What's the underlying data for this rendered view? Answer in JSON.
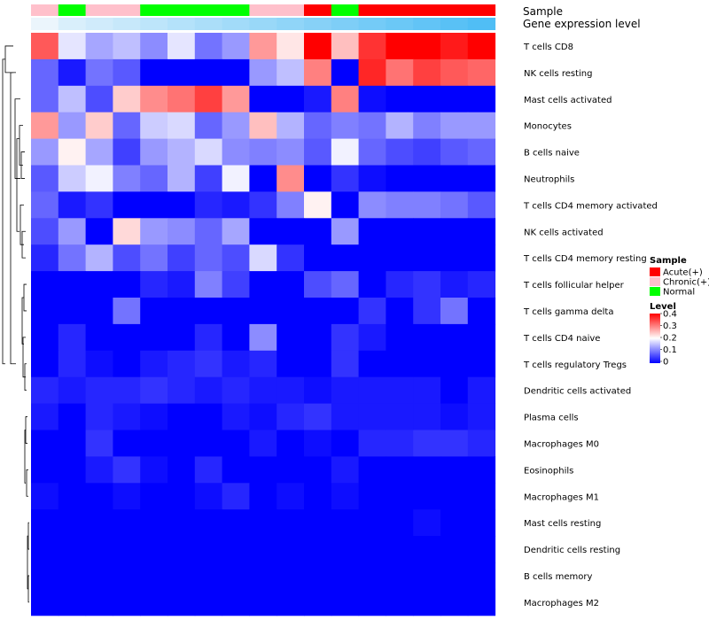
{
  "chart_data": {
    "type": "heatmap",
    "annotation_labels": {
      "sample": "Sample",
      "gene_expression": "Gene expression level"
    },
    "sample_groups": [
      "Chronic(+)",
      "Normal",
      "Chronic(+)",
      "Chronic(+)",
      "Normal",
      "Normal",
      "Normal",
      "Normal",
      "Chronic(+)",
      "Chronic(+)",
      "Acute(+)",
      "Normal",
      "Acute(+)",
      "Acute(+)",
      "Acute(+)",
      "Acute(+)",
      "Acute(+)"
    ],
    "gene_expression_level": [
      0.05,
      0.07,
      0.08,
      0.09,
      0.1,
      0.11,
      0.12,
      0.13,
      0.14,
      0.15,
      0.16,
      0.17,
      0.18,
      0.19,
      0.2,
      0.21,
      0.22
    ],
    "rows": [
      "T cells CD8",
      "NK cells resting",
      "Mast cells activated",
      "Monocytes",
      "B cells naive",
      "Neutrophils",
      "T cells CD4 memory activated",
      "NK cells activated",
      "T cells CD4 memory resting",
      "T cells follicular helper",
      "T cells gamma delta",
      "T cells CD4 naive",
      "T cells regulatory  Tregs",
      "Dendritic cells activated",
      "Plasma cells",
      "Macrophages M0",
      "Eosinophils",
      "Macrophages M1",
      "Mast cells resting",
      "Dendritic cells resting",
      "B cells memory",
      "Macrophages M2"
    ],
    "values": [
      [
        0.33,
        0.18,
        0.13,
        0.15,
        0.11,
        0.18,
        0.09,
        0.12,
        0.28,
        0.22,
        0.4,
        0.25,
        0.36,
        0.4,
        0.4,
        0.38,
        0.4
      ],
      [
        0.08,
        0.02,
        0.09,
        0.07,
        0.0,
        0.0,
        0.0,
        0.0,
        0.12,
        0.15,
        0.3,
        0.0,
        0.37,
        0.31,
        0.35,
        0.33,
        0.32
      ],
      [
        0.08,
        0.15,
        0.06,
        0.24,
        0.29,
        0.31,
        0.35,
        0.28,
        0.0,
        0.0,
        0.02,
        0.3,
        0.01,
        0.0,
        0.0,
        0.0,
        0.0
      ],
      [
        0.28,
        0.12,
        0.24,
        0.08,
        0.16,
        0.17,
        0.08,
        0.12,
        0.25,
        0.14,
        0.08,
        0.1,
        0.09,
        0.14,
        0.1,
        0.12,
        0.12
      ],
      [
        0.12,
        0.21,
        0.13,
        0.05,
        0.12,
        0.14,
        0.17,
        0.11,
        0.1,
        0.11,
        0.07,
        0.19,
        0.08,
        0.06,
        0.05,
        0.07,
        0.08
      ],
      [
        0.07,
        0.16,
        0.19,
        0.1,
        0.08,
        0.14,
        0.05,
        0.19,
        0.0,
        0.29,
        0.0,
        0.04,
        0.01,
        0.0,
        0.0,
        0.0,
        0.0
      ],
      [
        0.08,
        0.02,
        0.04,
        0.0,
        0.0,
        0.0,
        0.03,
        0.02,
        0.04,
        0.1,
        0.21,
        0.0,
        0.11,
        0.1,
        0.1,
        0.09,
        0.07
      ],
      [
        0.06,
        0.12,
        0.0,
        0.23,
        0.12,
        0.11,
        0.08,
        0.13,
        0.0,
        0.0,
        0.0,
        0.12,
        0.0,
        0.0,
        0.0,
        0.0,
        0.0
      ],
      [
        0.03,
        0.09,
        0.14,
        0.06,
        0.09,
        0.05,
        0.08,
        0.06,
        0.17,
        0.04,
        0.0,
        0.0,
        0.0,
        0.0,
        0.0,
        0.0,
        0.0
      ],
      [
        0.0,
        0.0,
        0.0,
        0.0,
        0.03,
        0.02,
        0.1,
        0.05,
        0.0,
        0.0,
        0.06,
        0.08,
        0.0,
        0.03,
        0.04,
        0.02,
        0.03
      ],
      [
        0.0,
        0.0,
        0.0,
        0.09,
        0.0,
        0.0,
        0.0,
        0.0,
        0.0,
        0.0,
        0.0,
        0.0,
        0.04,
        0.0,
        0.04,
        0.09,
        0.0
      ],
      [
        0.0,
        0.03,
        0.0,
        0.0,
        0.0,
        0.0,
        0.03,
        0.0,
        0.11,
        0.0,
        0.0,
        0.04,
        0.02,
        0.0,
        0.0,
        0.0,
        0.0
      ],
      [
        0.0,
        0.03,
        0.01,
        0.0,
        0.02,
        0.03,
        0.04,
        0.02,
        0.03,
        0.0,
        0.0,
        0.04,
        0.0,
        0.0,
        0.0,
        0.0,
        0.0
      ],
      [
        0.03,
        0.02,
        0.03,
        0.03,
        0.04,
        0.03,
        0.02,
        0.03,
        0.02,
        0.02,
        0.01,
        0.02,
        0.02,
        0.02,
        0.02,
        0.0,
        0.02
      ],
      [
        0.02,
        0.0,
        0.03,
        0.02,
        0.01,
        0.0,
        0.0,
        0.02,
        0.01,
        0.03,
        0.04,
        0.02,
        0.02,
        0.02,
        0.02,
        0.01,
        0.02
      ],
      [
        0.0,
        0.0,
        0.04,
        0.0,
        0.0,
        0.0,
        0.0,
        0.0,
        0.02,
        0.0,
        0.01,
        0.0,
        0.03,
        0.03,
        0.04,
        0.04,
        0.03
      ],
      [
        0.0,
        0.0,
        0.02,
        0.04,
        0.01,
        0.0,
        0.03,
        0.0,
        0.0,
        0.0,
        0.0,
        0.02,
        0.0,
        0.0,
        0.0,
        0.0,
        0.0
      ],
      [
        0.01,
        0.0,
        0.0,
        0.01,
        0.0,
        0.0,
        0.01,
        0.03,
        0.0,
        0.01,
        0.0,
        0.01,
        0.0,
        0.0,
        0.0,
        0.0,
        0.0
      ],
      [
        0.0,
        0.0,
        0.0,
        0.0,
        0.0,
        0.0,
        0.0,
        0.0,
        0.0,
        0.0,
        0.0,
        0.0,
        0.0,
        0.0,
        0.01,
        0.0,
        0.0
      ],
      [
        0.0,
        0.0,
        0.0,
        0.0,
        0.0,
        0.0,
        0.0,
        0.0,
        0.0,
        0.0,
        0.0,
        0.0,
        0.0,
        0.0,
        0.0,
        0.0,
        0.0
      ],
      [
        0.0,
        0.0,
        0.0,
        0.0,
        0.0,
        0.0,
        0.0,
        0.0,
        0.0,
        0.0,
        0.0,
        0.0,
        0.0,
        0.0,
        0.0,
        0.0,
        0.0
      ],
      [
        0.0,
        0.0,
        0.0,
        0.0,
        0.0,
        0.0,
        0.0,
        0.0,
        0.0,
        0.0,
        0.0,
        0.0,
        0.0,
        0.0,
        0.0,
        0.0,
        0.0
      ]
    ],
    "color_scale": {
      "low": "#0000FF",
      "mid": "#FFFFFF",
      "high": "#FF0000",
      "range": [
        0,
        0.4
      ],
      "midpoint": 0.2
    },
    "annotation_colors": {
      "Acute(+)": "#FF0000",
      "Chronic(+)": "#FFC0CB",
      "Normal": "#00FF00"
    },
    "legend": {
      "sample_title": "Sample",
      "sample_items": [
        "Acute(+)",
        "Chronic(+)",
        "Normal"
      ],
      "level_title": "Level",
      "level_ticks": [
        "0.4",
        "0.3",
        "0.2",
        "0.1",
        "0"
      ]
    }
  }
}
